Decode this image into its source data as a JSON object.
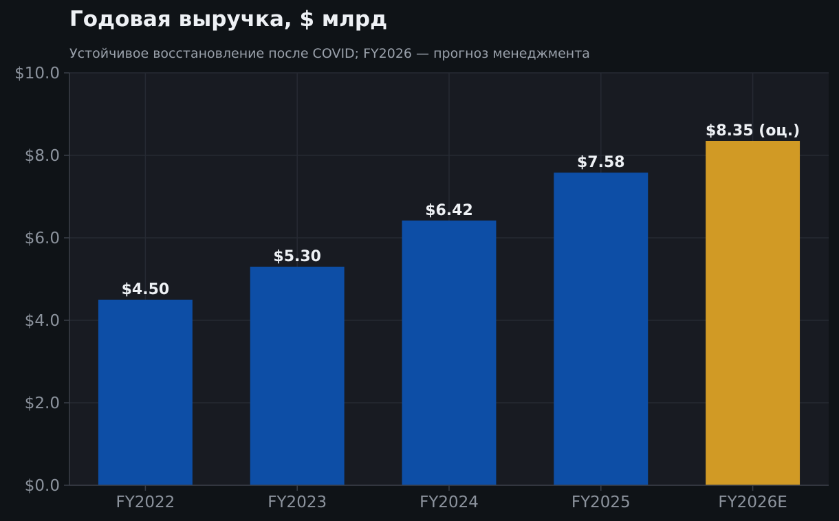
{
  "chart_data": {
    "type": "bar",
    "title": "Годовая выручка, $ млрд",
    "subtitle": "Устойчивое восстановление после COVID; FY2026 — прогноз менеджмента",
    "xlabel": "",
    "ylabel": "",
    "categories": [
      "FY2022",
      "FY2023",
      "FY2024",
      "FY2025",
      "FY2026E"
    ],
    "values": [
      4.5,
      5.3,
      6.42,
      7.58,
      8.35
    ],
    "data_labels": [
      "$4.50",
      "$5.30",
      "$6.42",
      "$7.58",
      "$8.35 (оц.)"
    ],
    "estimate": [
      false,
      false,
      false,
      false,
      true
    ],
    "ylim": [
      0,
      10
    ],
    "yticks": [
      0,
      2,
      4,
      6,
      8,
      10
    ],
    "ytick_labels": [
      "$0.0",
      "$2.0",
      "$4.0",
      "$6.0",
      "$8.0",
      "$10.0"
    ],
    "grid": true,
    "legend": "none"
  },
  "colors": {
    "page_background": "#0f1317",
    "plot_background": "#181b22",
    "actual_bar": "#0d4ea6",
    "estimate_bar": "#d19a25",
    "title_text": "#eef1f5",
    "subtitle_text": "#9aa1ab",
    "tick_text": "#8c939d",
    "data_label_text": "#eef1f5",
    "grid": "#262a33",
    "axis": "#3a3f48"
  }
}
